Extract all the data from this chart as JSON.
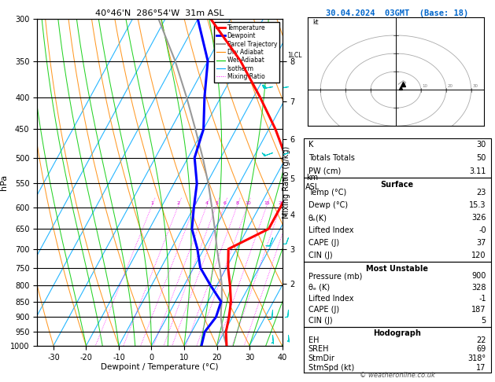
{
  "title_left": "40°46'N  286°54'W  31m ASL",
  "title_right": "30.04.2024  03GMT  (Base: 18)",
  "xlabel": "Dewpoint / Temperature (°C)",
  "pressure_levels": [
    300,
    350,
    400,
    450,
    500,
    550,
    600,
    650,
    700,
    750,
    800,
    850,
    900,
    950,
    1000
  ],
  "temp_min": -35,
  "temp_max": 40,
  "mixing_ratios": [
    1,
    2,
    3,
    4,
    5,
    6,
    8,
    10,
    15,
    20,
    25
  ],
  "km_labels": [
    2,
    3,
    4,
    5,
    6,
    7,
    8
  ],
  "km_pressures": [
    795,
    700,
    616,
    540,
    467,
    406,
    350
  ],
  "lcl_pressure": 875,
  "colors": {
    "temperature": "#ff0000",
    "dewpoint": "#0000ff",
    "parcel": "#999999",
    "dry_adiabat": "#ff8800",
    "wet_adiabat": "#00cc00",
    "isotherm": "#00aaff",
    "mixing_ratio": "#ff00ff",
    "wind_barb": "#00cccc"
  },
  "legend_items": [
    {
      "label": "Temperature",
      "color": "#ff0000",
      "lw": 2.0,
      "ls": "-"
    },
    {
      "label": "Dewpoint",
      "color": "#0000ff",
      "lw": 2.0,
      "ls": "-"
    },
    {
      "label": "Parcel Trajectory",
      "color": "#999999",
      "lw": 1.4,
      "ls": "-"
    },
    {
      "label": "Dry Adiabat",
      "color": "#ff8800",
      "lw": 0.8,
      "ls": "-"
    },
    {
      "label": "Wet Adiabat",
      "color": "#00cc00",
      "lw": 0.8,
      "ls": "-"
    },
    {
      "label": "Isotherm",
      "color": "#00aaff",
      "lw": 0.8,
      "ls": "-"
    },
    {
      "label": "Mixing Ratio",
      "color": "#ff00ff",
      "lw": 0.7,
      "ls": ":"
    }
  ],
  "sounding_temp_p": [
    1000,
    950,
    900,
    850,
    800,
    750,
    700,
    650,
    600,
    550,
    500,
    450,
    400,
    350,
    300
  ],
  "sounding_temp_t": [
    23.0,
    20.5,
    19.0,
    17.0,
    14.0,
    10.5,
    7.5,
    16.5,
    16.5,
    16.5,
    10.0,
    2.0,
    -8.0,
    -20.0,
    -36.0
  ],
  "sounding_dewp_p": [
    1000,
    950,
    900,
    850,
    800,
    750,
    700,
    650,
    600,
    550,
    500,
    450,
    400,
    350,
    300
  ],
  "sounding_dewp_t": [
    15.3,
    14.0,
    15.0,
    14.0,
    8.0,
    2.0,
    -2.0,
    -7.0,
    -10.0,
    -13.0,
    -18.0,
    -20.0,
    -25.0,
    -30.0,
    -40.0
  ],
  "parcel_p": [
    1000,
    950,
    900,
    875,
    850,
    800,
    750,
    700,
    650,
    600,
    550,
    500,
    450,
    400,
    350,
    300
  ],
  "parcel_t": [
    23.0,
    19.5,
    16.5,
    15.3,
    14.2,
    11.5,
    8.0,
    4.0,
    0.0,
    -4.5,
    -9.5,
    -15.5,
    -22.5,
    -30.5,
    -40.0,
    -52.0
  ],
  "wind_barbs": [
    {
      "p": 385,
      "spd": 25,
      "dir": 260
    },
    {
      "p": 490,
      "spd": 15,
      "dir": 250
    },
    {
      "p": 670,
      "spd": 10,
      "dir": 200
    },
    {
      "p": 875,
      "spd": 8,
      "dir": 185
    },
    {
      "p": 960,
      "spd": 5,
      "dir": 175
    }
  ],
  "K": "30",
  "Totals_Totals": "50",
  "PW_cm": "3.11",
  "Surf_Temp": "23",
  "Surf_Dewp": "15.3",
  "Surf_thetae": "326",
  "Surf_LI": "-0",
  "Surf_CAPE": "37",
  "Surf_CIN": "120",
  "MU_Press": "900",
  "MU_thetae": "328",
  "MU_LI": "-1",
  "MU_CAPE": "187",
  "MU_CIN": "5",
  "EH": "22",
  "SREH": "69",
  "StmDir": "318°",
  "StmSpd": "17"
}
